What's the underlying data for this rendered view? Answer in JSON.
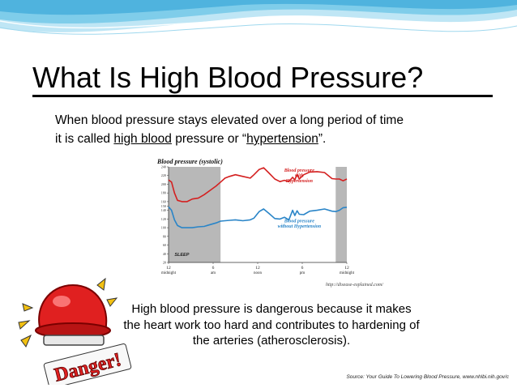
{
  "slide": {
    "title": "What Is High Blood Pressure?",
    "intro": {
      "line1": "When blood pressure stays elevated over a long period of time",
      "line2_prefix": "it is called ",
      "line2_term1": "high blood",
      "line2_mid": " pressure or “",
      "line2_term2": "hypertension",
      "line2_suffix": "”."
    },
    "body": "High blood pressure is dangerous because it makes the heart work too hard and contributes to hardening of the arteries  (atherosclerosis).",
    "source": "Source: Your Guide To Lowering Blood Pressure, www.nhlbi.nih.gov/c",
    "alarm_sign": "Danger!",
    "colors": {
      "wave": "#5bbfe6",
      "alarm_red": "#e02020",
      "alarm_yellow": "#f2c012"
    }
  },
  "chart_data": {
    "type": "line",
    "title": "Blood pressure (systolic)",
    "credit": "http://disease-explained.com/",
    "ylim": [
      20,
      240
    ],
    "yticks": [
      20,
      40,
      60,
      80,
      100,
      120,
      140,
      150,
      160,
      180,
      200,
      220,
      240
    ],
    "ytick_labels": [
      "20",
      "40",
      "60",
      "80",
      "100",
      "120",
      "140",
      "150",
      "160",
      "180",
      "200",
      "220",
      "240"
    ],
    "xlim": [
      0,
      24
    ],
    "xticks": [
      {
        "x": 0,
        "l1": "12",
        "l2": "midnight"
      },
      {
        "x": 6,
        "l1": "6",
        "l2": "am"
      },
      {
        "x": 12,
        "l1": "12",
        "l2": "noon"
      },
      {
        "x": 18,
        "l1": "6",
        "l2": "pm"
      },
      {
        "x": 24,
        "l1": "12",
        "l2": "midnight"
      }
    ],
    "sleep_label": "SLEEP",
    "shaded": [
      {
        "from": 0,
        "to": 7
      },
      {
        "from": 22.5,
        "to": 24
      }
    ],
    "series": [
      {
        "name": "Blood pressure with Hypertension",
        "label_lines": [
          "Blood pressure",
          "with",
          "Hypertension"
        ],
        "color": "#d42020",
        "x": [
          0,
          0.4,
          0.8,
          1.2,
          1.8,
          2.5,
          3.2,
          4.0,
          4.8,
          5.6,
          6.4,
          7.0,
          7.6,
          8.2,
          9.0,
          10.0,
          11.0,
          11.5,
          12.2,
          12.8,
          13.5,
          14.3,
          15.0,
          15.6,
          16.2,
          16.7,
          17.0,
          17.3,
          17.6,
          18.2,
          19.0,
          20.0,
          21.0,
          22.0,
          22.5,
          23.0,
          23.5,
          24.0
        ],
        "y": [
          210,
          205,
          180,
          163,
          160,
          160,
          166,
          168,
          176,
          186,
          196,
          205,
          214,
          218,
          222,
          218,
          214,
          222,
          234,
          238,
          226,
          212,
          206,
          209,
          206,
          216,
          210,
          223,
          212,
          222,
          228,
          229,
          227,
          213,
          212,
          212,
          208,
          212
        ]
      },
      {
        "name": "Blood pressure without Hypertension",
        "label_lines": [
          "Blood pressure",
          "without Hypertension"
        ],
        "color": "#2a85c8",
        "x": [
          0,
          0.4,
          0.8,
          1.2,
          1.8,
          2.5,
          3.2,
          4.0,
          4.8,
          5.6,
          6.4,
          7.0,
          7.6,
          8.2,
          9.0,
          10.0,
          11.0,
          11.5,
          12.2,
          12.8,
          13.5,
          14.3,
          15.0,
          15.6,
          16.2,
          16.7,
          17.0,
          17.3,
          17.6,
          18.2,
          19.0,
          20.0,
          21.0,
          22.0,
          22.5,
          23.0,
          23.5,
          24.0
        ],
        "y": [
          148,
          140,
          118,
          105,
          100,
          100,
          100,
          102,
          103,
          107,
          111,
          115,
          116,
          117,
          118,
          116,
          118,
          122,
          137,
          143,
          133,
          121,
          120,
          124,
          118,
          140,
          128,
          139,
          131,
          130,
          138,
          140,
          143,
          138,
          137,
          140,
          146,
          147
        ]
      }
    ],
    "grid": false
  }
}
